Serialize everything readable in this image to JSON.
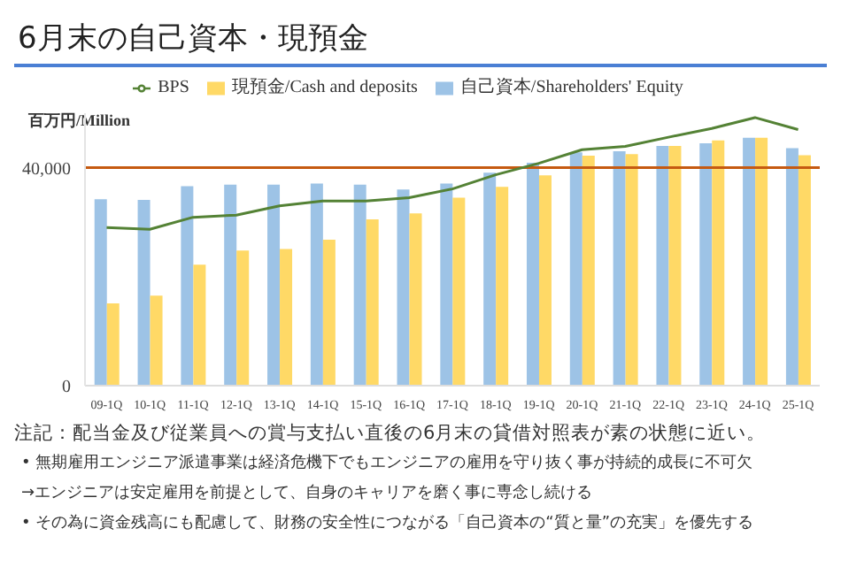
{
  "chart_data": {
    "type": "bar",
    "title": "6月末の自己資本・現預金",
    "ylabel": "百万円/Million",
    "categories": [
      "09-1Q",
      "10-1Q",
      "11-1Q",
      "12-1Q",
      "13-1Q",
      "14-1Q",
      "15-1Q",
      "16-1Q",
      "17-1Q",
      "18-1Q",
      "19-1Q",
      "20-1Q",
      "21-1Q",
      "22-1Q",
      "23-1Q",
      "24-1Q",
      "25-1Q"
    ],
    "series": [
      {
        "name": "自己資本/Shareholders' Equity",
        "color": "#9dc3e6",
        "values": [
          34200,
          34100,
          36600,
          36900,
          36900,
          37100,
          36900,
          36000,
          37100,
          39100,
          40900,
          42800,
          43000,
          44000,
          44500,
          45500,
          43600
        ]
      },
      {
        "name": "現預金/Cash and deposits",
        "color": "#ffd966",
        "values": [
          15100,
          16500,
          22200,
          24800,
          25100,
          26800,
          30500,
          31600,
          34500,
          36500,
          38600,
          42200,
          42500,
          44000,
          45000,
          45500,
          42300
        ]
      },
      {
        "name": "BPS",
        "type": "line",
        "color": "#548235",
        "marker": "none",
        "values": [
          29000,
          28700,
          30900,
          31300,
          33000,
          33900,
          33900,
          34500,
          36100,
          38700,
          40800,
          43300,
          43900,
          45600,
          47200,
          49200,
          47000
        ]
      }
    ],
    "ylim": [
      0,
      50000
    ],
    "yticks": [
      0,
      {
        "value": 40000,
        "label": "40,000"
      }
    ],
    "ref_lines": [
      {
        "axis": "y",
        "value": 40000,
        "color": "#c55a11"
      }
    ],
    "grid": false,
    "legend": "top",
    "annotations": [
      "注記：配当金及び従業員への賞与支払い直後の6月末の貸借対照表が素の状態に近い。",
      "• 無期雇用エンジニア派遣事業は経済危機下でもエンジニアの雇用を守り抜く事が持続的成長に不可欠",
      "→エンジニアは安定雇用を前提として、自身のキャリアを磨く事に専念し続ける",
      "• その為に資金残高にも配慮して、財務の安全性につながる「自己資本の“質と量”の充実」を優先する"
    ]
  }
}
